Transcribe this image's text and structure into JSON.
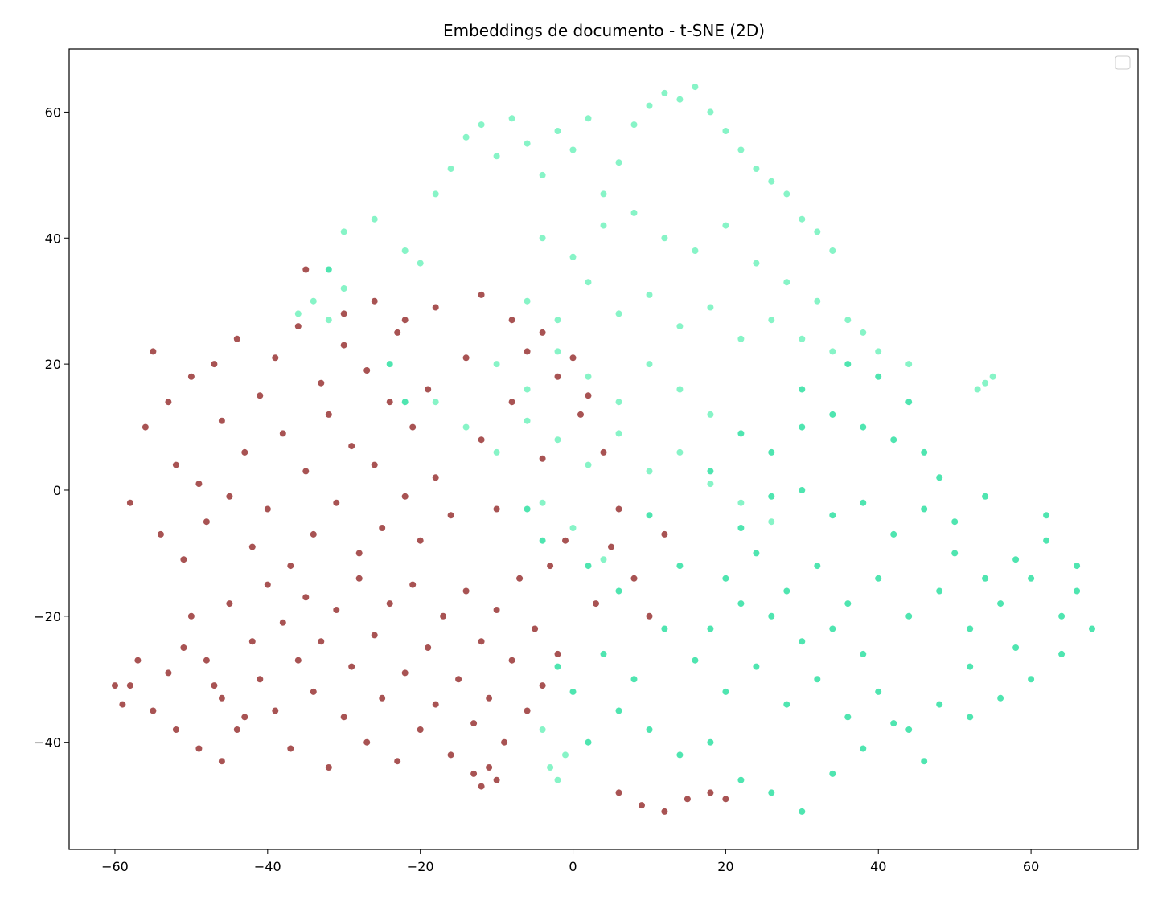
{
  "chart_data": {
    "type": "scatter",
    "title": "Embeddings de documento - t-SNE (2D)",
    "xlabel": "",
    "ylabel": "",
    "xlim": [
      -66,
      74
    ],
    "ylim": [
      -57,
      70
    ],
    "xticks": [
      -60,
      -40,
      -20,
      0,
      20,
      40,
      60
    ],
    "yticks": [
      -40,
      -20,
      0,
      20,
      40,
      60
    ],
    "xtick_labels": [
      "−60",
      "−40",
      "−20",
      "0",
      "20",
      "40",
      "60"
    ],
    "ytick_labels": [
      "−40",
      "−20",
      "0",
      "20",
      "40",
      "60"
    ],
    "grid": false,
    "legend": {
      "placement": "top-right",
      "entries": []
    },
    "colors": {
      "dark_red": "#8b1a1a",
      "light_green": "#5ff0b4",
      "green": "#14dc96"
    },
    "series": [
      {
        "color": "#8b1a1a",
        "points": [
          [
            -58,
            -2
          ],
          [
            -56,
            10
          ],
          [
            -55,
            22
          ],
          [
            -54,
            -7
          ],
          [
            -53,
            14
          ],
          [
            -52,
            4
          ],
          [
            -51,
            -11
          ],
          [
            -50,
            18
          ],
          [
            -49,
            1
          ],
          [
            -48,
            -5
          ],
          [
            -47,
            20
          ],
          [
            -46,
            11
          ],
          [
            -45,
            -1
          ],
          [
            -44,
            24
          ],
          [
            -43,
            6
          ],
          [
            -42,
            -9
          ],
          [
            -41,
            15
          ],
          [
            -40,
            -3
          ],
          [
            -39,
            21
          ],
          [
            -38,
            9
          ],
          [
            -37,
            -12
          ],
          [
            -36,
            26
          ],
          [
            -35,
            3
          ],
          [
            -34,
            -7
          ],
          [
            -33,
            17
          ],
          [
            -32,
            12
          ],
          [
            -31,
            -2
          ],
          [
            -30,
            23
          ],
          [
            -29,
            7
          ],
          [
            -28,
            -10
          ],
          [
            -27,
            19
          ],
          [
            -26,
            4
          ],
          [
            -25,
            -6
          ],
          [
            -24,
            14
          ],
          [
            -23,
            25
          ],
          [
            -22,
            -1
          ],
          [
            -21,
            10
          ],
          [
            -20,
            -8
          ],
          [
            -19,
            16
          ],
          [
            -18,
            2
          ],
          [
            -16,
            -4
          ],
          [
            -14,
            21
          ],
          [
            -12,
            8
          ],
          [
            -10,
            -3
          ],
          [
            -8,
            14
          ],
          [
            -6,
            22
          ],
          [
            -4,
            5
          ],
          [
            -2,
            18
          ],
          [
            -1,
            -8
          ],
          [
            1,
            12
          ],
          [
            -50,
            -20
          ],
          [
            -48,
            -27
          ],
          [
            -46,
            -33
          ],
          [
            -45,
            -18
          ],
          [
            -44,
            -38
          ],
          [
            -42,
            -24
          ],
          [
            -41,
            -30
          ],
          [
            -40,
            -15
          ],
          [
            -39,
            -35
          ],
          [
            -38,
            -21
          ],
          [
            -37,
            -41
          ],
          [
            -36,
            -27
          ],
          [
            -35,
            -17
          ],
          [
            -34,
            -32
          ],
          [
            -33,
            -24
          ],
          [
            -32,
            -44
          ],
          [
            -31,
            -19
          ],
          [
            -30,
            -36
          ],
          [
            -29,
            -28
          ],
          [
            -28,
            -14
          ],
          [
            -27,
            -40
          ],
          [
            -26,
            -23
          ],
          [
            -25,
            -33
          ],
          [
            -24,
            -18
          ],
          [
            -23,
            -43
          ],
          [
            -22,
            -29
          ],
          [
            -21,
            -15
          ],
          [
            -20,
            -38
          ],
          [
            -19,
            -25
          ],
          [
            -18,
            -34
          ],
          [
            -17,
            -20
          ],
          [
            -16,
            -42
          ],
          [
            -15,
            -30
          ],
          [
            -14,
            -16
          ],
          [
            -13,
            -37
          ],
          [
            -12,
            -24
          ],
          [
            -11,
            -33
          ],
          [
            -10,
            -19
          ],
          [
            -9,
            -40
          ],
          [
            -8,
            -27
          ],
          [
            -7,
            -14
          ],
          [
            -6,
            -35
          ],
          [
            -5,
            -22
          ],
          [
            -4,
            -31
          ],
          [
            -3,
            -12
          ],
          [
            -2,
            -26
          ],
          [
            -58,
            -31
          ],
          [
            -57,
            -27
          ],
          [
            -55,
            -35
          ],
          [
            -53,
            -29
          ],
          [
            -52,
            -38
          ],
          [
            -51,
            -25
          ],
          [
            -49,
            -41
          ],
          [
            -47,
            -31
          ],
          [
            -46,
            -43
          ],
          [
            -43,
            -36
          ],
          [
            -12,
            -47
          ],
          [
            -11,
            -44
          ],
          [
            -13,
            -45
          ],
          [
            -10,
            -46
          ],
          [
            6,
            -48
          ],
          [
            9,
            -50
          ],
          [
            12,
            -51
          ],
          [
            15,
            -49
          ],
          [
            18,
            -48
          ],
          [
            20,
            -49
          ],
          [
            -60,
            -31
          ],
          [
            -59,
            -34
          ],
          [
            -35,
            35
          ],
          [
            -30,
            28
          ],
          [
            -26,
            30
          ],
          [
            -22,
            27
          ],
          [
            -18,
            29
          ],
          [
            -12,
            31
          ],
          [
            -8,
            27
          ],
          [
            -4,
            25
          ],
          [
            0,
            21
          ],
          [
            2,
            15
          ],
          [
            4,
            6
          ],
          [
            6,
            -3
          ],
          [
            5,
            -9
          ],
          [
            8,
            -14
          ],
          [
            10,
            -20
          ],
          [
            12,
            -7
          ],
          [
            3,
            -18
          ]
        ]
      },
      {
        "color": "#5ff0b4",
        "points": [
          [
            -30,
            41
          ],
          [
            -26,
            43
          ],
          [
            -22,
            38
          ],
          [
            -20,
            36
          ],
          [
            -18,
            47
          ],
          [
            -16,
            51
          ],
          [
            -14,
            56
          ],
          [
            -12,
            58
          ],
          [
            -10,
            53
          ],
          [
            -8,
            59
          ],
          [
            -6,
            55
          ],
          [
            -4,
            50
          ],
          [
            -2,
            57
          ],
          [
            0,
            54
          ],
          [
            2,
            59
          ],
          [
            4,
            47
          ],
          [
            6,
            52
          ],
          [
            8,
            58
          ],
          [
            10,
            61
          ],
          [
            12,
            63
          ],
          [
            14,
            62
          ],
          [
            16,
            64
          ],
          [
            18,
            60
          ],
          [
            20,
            57
          ],
          [
            22,
            54
          ],
          [
            24,
            51
          ],
          [
            26,
            49
          ],
          [
            28,
            47
          ],
          [
            30,
            43
          ],
          [
            32,
            41
          ],
          [
            34,
            38
          ],
          [
            -4,
            40
          ],
          [
            0,
            37
          ],
          [
            4,
            42
          ],
          [
            8,
            44
          ],
          [
            12,
            40
          ],
          [
            16,
            38
          ],
          [
            20,
            42
          ],
          [
            24,
            36
          ],
          [
            28,
            33
          ],
          [
            32,
            30
          ],
          [
            36,
            27
          ],
          [
            -6,
            30
          ],
          [
            -2,
            27
          ],
          [
            2,
            33
          ],
          [
            6,
            28
          ],
          [
            10,
            31
          ],
          [
            14,
            26
          ],
          [
            18,
            29
          ],
          [
            22,
            24
          ],
          [
            26,
            27
          ],
          [
            30,
            24
          ],
          [
            34,
            22
          ],
          [
            -10,
            20
          ],
          [
            -6,
            16
          ],
          [
            -2,
            22
          ],
          [
            2,
            18
          ],
          [
            6,
            14
          ],
          [
            10,
            20
          ],
          [
            14,
            16
          ],
          [
            18,
            12
          ],
          [
            -18,
            14
          ],
          [
            -14,
            10
          ],
          [
            -10,
            6
          ],
          [
            -6,
            11
          ],
          [
            -2,
            8
          ],
          [
            2,
            4
          ],
          [
            6,
            9
          ],
          [
            10,
            3
          ],
          [
            14,
            6
          ],
          [
            18,
            1
          ],
          [
            22,
            -2
          ],
          [
            26,
            -5
          ],
          [
            -34,
            30
          ],
          [
            -32,
            27
          ],
          [
            -30,
            32
          ],
          [
            -36,
            28
          ],
          [
            40,
            22
          ],
          [
            44,
            20
          ],
          [
            38,
            25
          ],
          [
            53,
            16
          ],
          [
            54,
            17
          ],
          [
            55,
            18
          ],
          [
            -4,
            -2
          ],
          [
            0,
            -6
          ],
          [
            4,
            -11
          ],
          [
            -2,
            -46
          ],
          [
            -3,
            -44
          ],
          [
            -1,
            -42
          ],
          [
            -4,
            -38
          ]
        ]
      },
      {
        "color": "#14dc96",
        "points": [
          [
            18,
            3
          ],
          [
            22,
            -6
          ],
          [
            26,
            -1
          ],
          [
            30,
            0
          ],
          [
            34,
            -4
          ],
          [
            38,
            -2
          ],
          [
            42,
            -7
          ],
          [
            46,
            -3
          ],
          [
            50,
            -5
          ],
          [
            54,
            -1
          ],
          [
            20,
            -14
          ],
          [
            24,
            -10
          ],
          [
            28,
            -16
          ],
          [
            32,
            -12
          ],
          [
            36,
            -18
          ],
          [
            40,
            -14
          ],
          [
            44,
            -20
          ],
          [
            48,
            -16
          ],
          [
            52,
            -22
          ],
          [
            56,
            -18
          ],
          [
            60,
            -14
          ],
          [
            64,
            -20
          ],
          [
            66,
            -16
          ],
          [
            68,
            -22
          ],
          [
            62,
            -8
          ],
          [
            58,
            -25
          ],
          [
            12,
            -22
          ],
          [
            16,
            -27
          ],
          [
            20,
            -32
          ],
          [
            24,
            -28
          ],
          [
            28,
            -34
          ],
          [
            32,
            -30
          ],
          [
            36,
            -36
          ],
          [
            40,
            -32
          ],
          [
            44,
            -38
          ],
          [
            48,
            -34
          ],
          [
            52,
            -28
          ],
          [
            8,
            -30
          ],
          [
            6,
            -35
          ],
          [
            4,
            -26
          ],
          [
            10,
            -38
          ],
          [
            14,
            -42
          ],
          [
            18,
            -40
          ],
          [
            22,
            -46
          ],
          [
            26,
            -48
          ],
          [
            30,
            -51
          ],
          [
            34,
            -45
          ],
          [
            38,
            -41
          ],
          [
            42,
            -37
          ],
          [
            46,
            -43
          ],
          [
            0,
            -32
          ],
          [
            -2,
            -28
          ],
          [
            2,
            -40
          ],
          [
            30,
            16
          ],
          [
            34,
            12
          ],
          [
            38,
            10
          ],
          [
            42,
            8
          ],
          [
            46,
            6
          ],
          [
            48,
            2
          ],
          [
            44,
            14
          ],
          [
            40,
            18
          ],
          [
            36,
            20
          ],
          [
            30,
            10
          ],
          [
            26,
            6
          ],
          [
            22,
            9
          ],
          [
            50,
            -10
          ],
          [
            54,
            -14
          ],
          [
            58,
            -11
          ],
          [
            62,
            -4
          ],
          [
            66,
            -12
          ],
          [
            64,
            -26
          ],
          [
            60,
            -30
          ],
          [
            56,
            -33
          ],
          [
            52,
            -36
          ],
          [
            38,
            -26
          ],
          [
            34,
            -22
          ],
          [
            30,
            -24
          ],
          [
            26,
            -20
          ],
          [
            22,
            -18
          ],
          [
            18,
            -22
          ],
          [
            14,
            -12
          ],
          [
            10,
            -4
          ],
          [
            -6,
            -3
          ],
          [
            -4,
            -8
          ],
          [
            2,
            -12
          ],
          [
            6,
            -16
          ],
          [
            -22,
            14
          ],
          [
            -24,
            20
          ],
          [
            -32,
            35
          ]
        ]
      }
    ]
  }
}
